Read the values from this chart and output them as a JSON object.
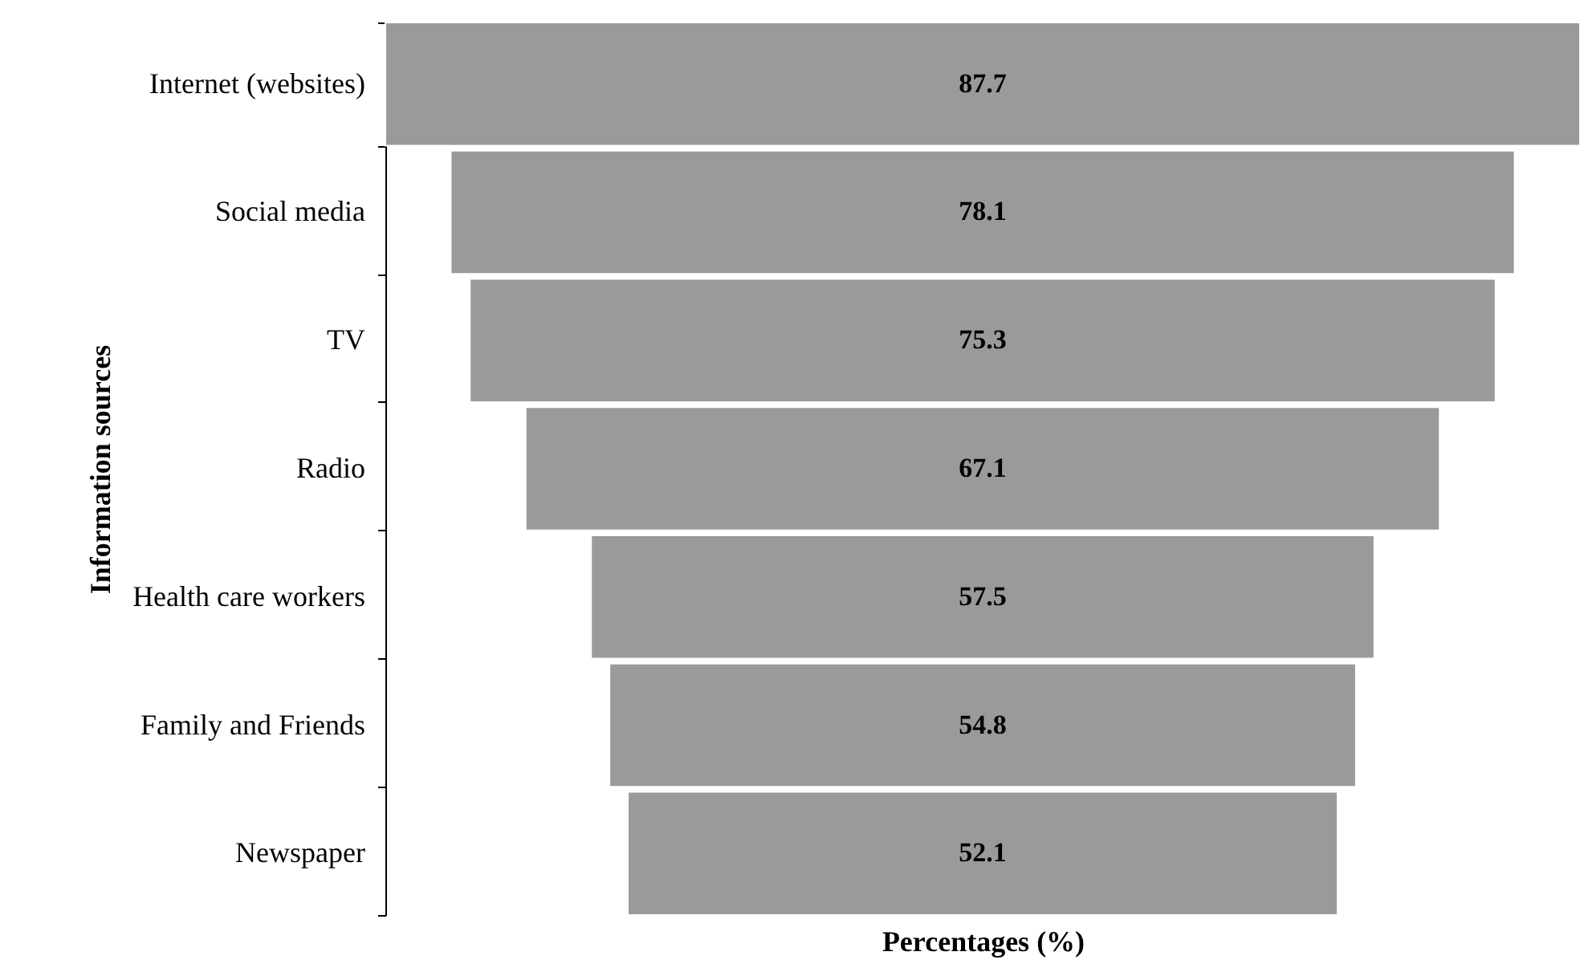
{
  "chart_data": {
    "type": "other",
    "xlabel": "Percentages (%)",
    "ylabel": "Information sources",
    "categories": [
      "Internet (websites)",
      "Social media",
      "TV",
      "Radio",
      "Health care workers",
      "Family and Friends",
      "Newspaper"
    ],
    "values": [
      87.7,
      78.1,
      75.3,
      67.1,
      57.5,
      54.8,
      52.1
    ],
    "color": "#9a9a9a",
    "data_labels": true
  }
}
